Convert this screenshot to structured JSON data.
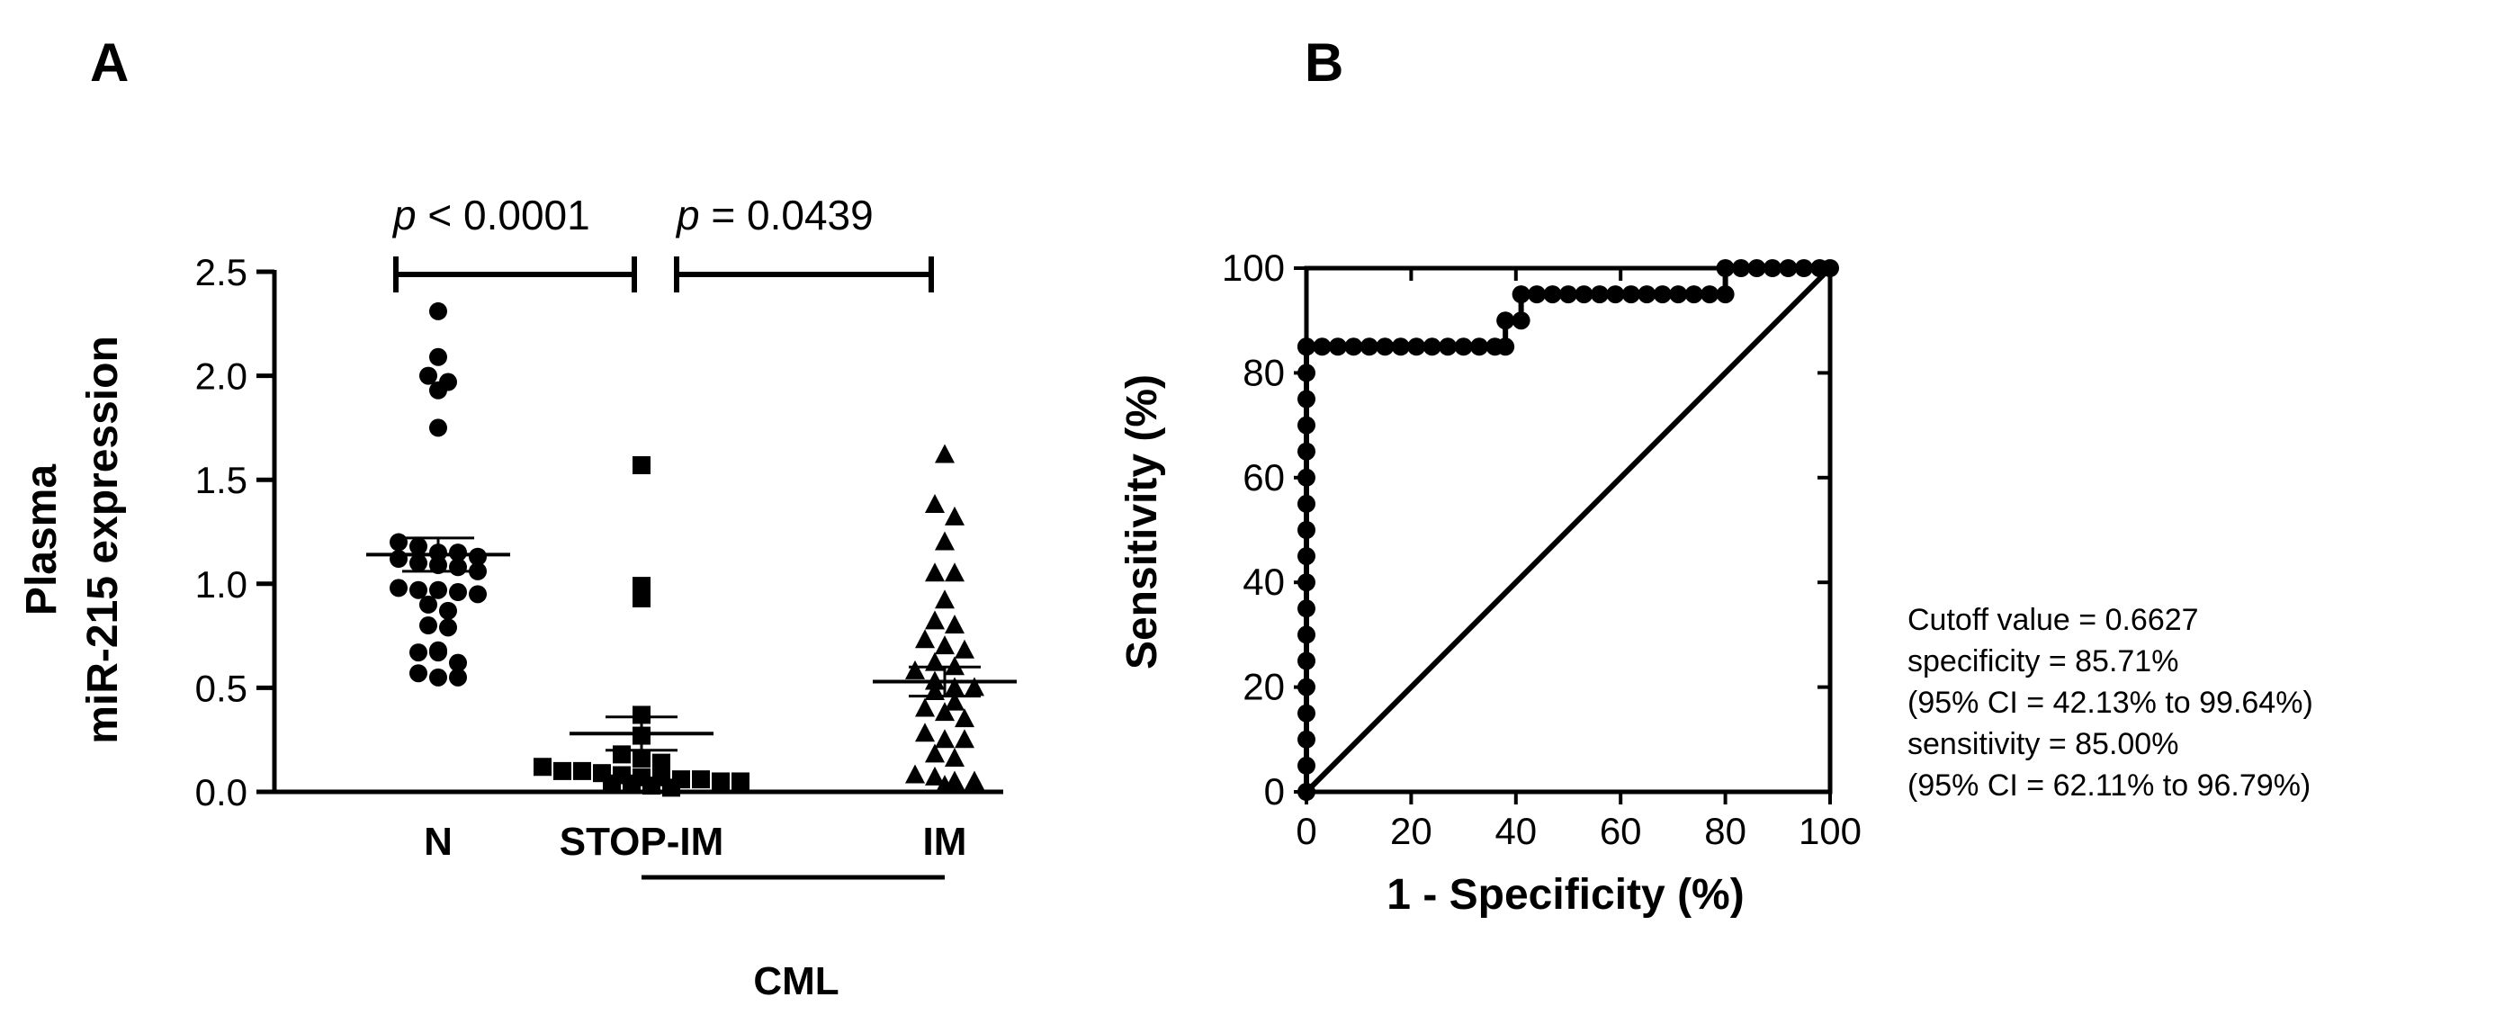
{
  "panel_a": {
    "letter": "A"
  },
  "panel_b": {
    "letter": "B"
  },
  "chart_data": [
    {
      "type": "scatter",
      "panel": "A",
      "ylabel_line1": "Plasma",
      "ylabel_line2": "miR-215 expression",
      "ylim": [
        0,
        2.5
      ],
      "yticks": [
        "0.0",
        "0.5",
        "1.0",
        "1.5",
        "2.0",
        "2.5"
      ],
      "ytick_values": [
        0,
        0.5,
        1.0,
        1.5,
        2.0,
        2.5
      ],
      "categories": [
        "N",
        "STOP-IM",
        "IM"
      ],
      "group_label": "CML",
      "series": [
        {
          "name": "N",
          "marker": "circle",
          "values": [
            2.31,
            2.09,
            2.0,
            1.97,
            1.93,
            1.75,
            1.2,
            1.18,
            1.15,
            1.15,
            1.13,
            1.12,
            1.1,
            1.09,
            1.08,
            1.06,
            0.98,
            0.97,
            0.97,
            0.96,
            0.95,
            0.9,
            0.87,
            0.8,
            0.79,
            0.68,
            0.67,
            0.67,
            0.62,
            0.57,
            0.55,
            0.55
          ],
          "mean": 1.14,
          "sem_upper": 1.22,
          "sem_lower": 1.06
        },
        {
          "name": "STOP-IM",
          "marker": "square",
          "values": [
            1.57,
            0.99,
            0.93,
            0.37,
            0.27,
            0.18,
            0.16,
            0.14,
            0.12,
            0.1,
            0.1,
            0.09,
            0.08,
            0.07,
            0.07,
            0.06,
            0.06,
            0.05,
            0.05,
            0.04,
            0.04,
            0.03,
            0.02
          ],
          "mean": 0.28,
          "sem_upper": 0.36,
          "sem_lower": 0.2
        },
        {
          "name": "IM",
          "marker": "triangle",
          "values": [
            1.62,
            1.38,
            1.32,
            1.2,
            1.05,
            1.05,
            0.92,
            0.82,
            0.8,
            0.73,
            0.7,
            0.68,
            0.62,
            0.6,
            0.58,
            0.53,
            0.5,
            0.5,
            0.48,
            0.43,
            0.4,
            0.38,
            0.35,
            0.28,
            0.25,
            0.25,
            0.18,
            0.16,
            0.08,
            0.07,
            0.05,
            0.05,
            0.03
          ],
          "mean": 0.53,
          "sem_upper": 0.6,
          "sem_lower": 0.46
        }
      ],
      "comparisons": [
        {
          "from": "N",
          "to": "STOP-IM",
          "label_italic": "p",
          "label_rest": " < 0.0001"
        },
        {
          "from": "STOP-IM",
          "to": "IM",
          "label_italic": "p",
          "label_rest": " = 0.0439"
        }
      ]
    },
    {
      "type": "line",
      "panel": "B",
      "xlabel": "1 - Specificity (%)",
      "ylabel": "Sensitivity (%)",
      "xlim": [
        0,
        100
      ],
      "ylim": [
        0,
        100
      ],
      "xticks": [
        "0",
        "20",
        "40",
        "60",
        "80",
        "100"
      ],
      "yticks": [
        "0",
        "20",
        "40",
        "60",
        "80",
        "100"
      ],
      "tick_values": [
        0,
        20,
        40,
        60,
        80,
        100
      ],
      "roc_x": [
        0,
        0,
        0,
        0,
        0,
        0,
        0,
        0,
        0,
        0,
        0,
        0,
        0,
        0,
        0,
        0,
        0,
        0,
        0,
        0,
        3,
        6,
        9,
        12,
        15,
        18,
        21,
        24,
        27,
        30,
        33,
        36,
        38,
        38,
        41,
        41,
        44,
        47,
        50,
        53,
        56,
        59,
        62,
        65,
        68,
        71,
        74,
        77,
        80,
        80,
        83,
        86,
        89,
        92,
        95,
        98,
        100
      ],
      "roc_y": [
        0,
        5,
        10,
        15,
        20,
        25,
        30,
        35,
        40,
        45,
        50,
        55,
        60,
        65,
        70,
        75,
        80,
        85,
        85,
        85,
        85,
        85,
        85,
        85,
        85,
        85,
        85,
        85,
        85,
        85,
        85,
        85,
        85,
        90,
        90,
        95,
        95,
        95,
        95,
        95,
        95,
        95,
        95,
        95,
        95,
        95,
        95,
        95,
        95,
        100,
        100,
        100,
        100,
        100,
        100,
        100,
        100
      ],
      "reference_line": [
        [
          0,
          0
        ],
        [
          100,
          100
        ]
      ]
    }
  ],
  "annotation": {
    "lines": [
      "Cutoff value = 0.6627",
      "specificity = 85.71%",
      "(95% CI = 42.13% to 99.64%)",
      "sensitivity = 85.00%",
      "(95% CI = 62.11% to 96.79%)"
    ]
  }
}
